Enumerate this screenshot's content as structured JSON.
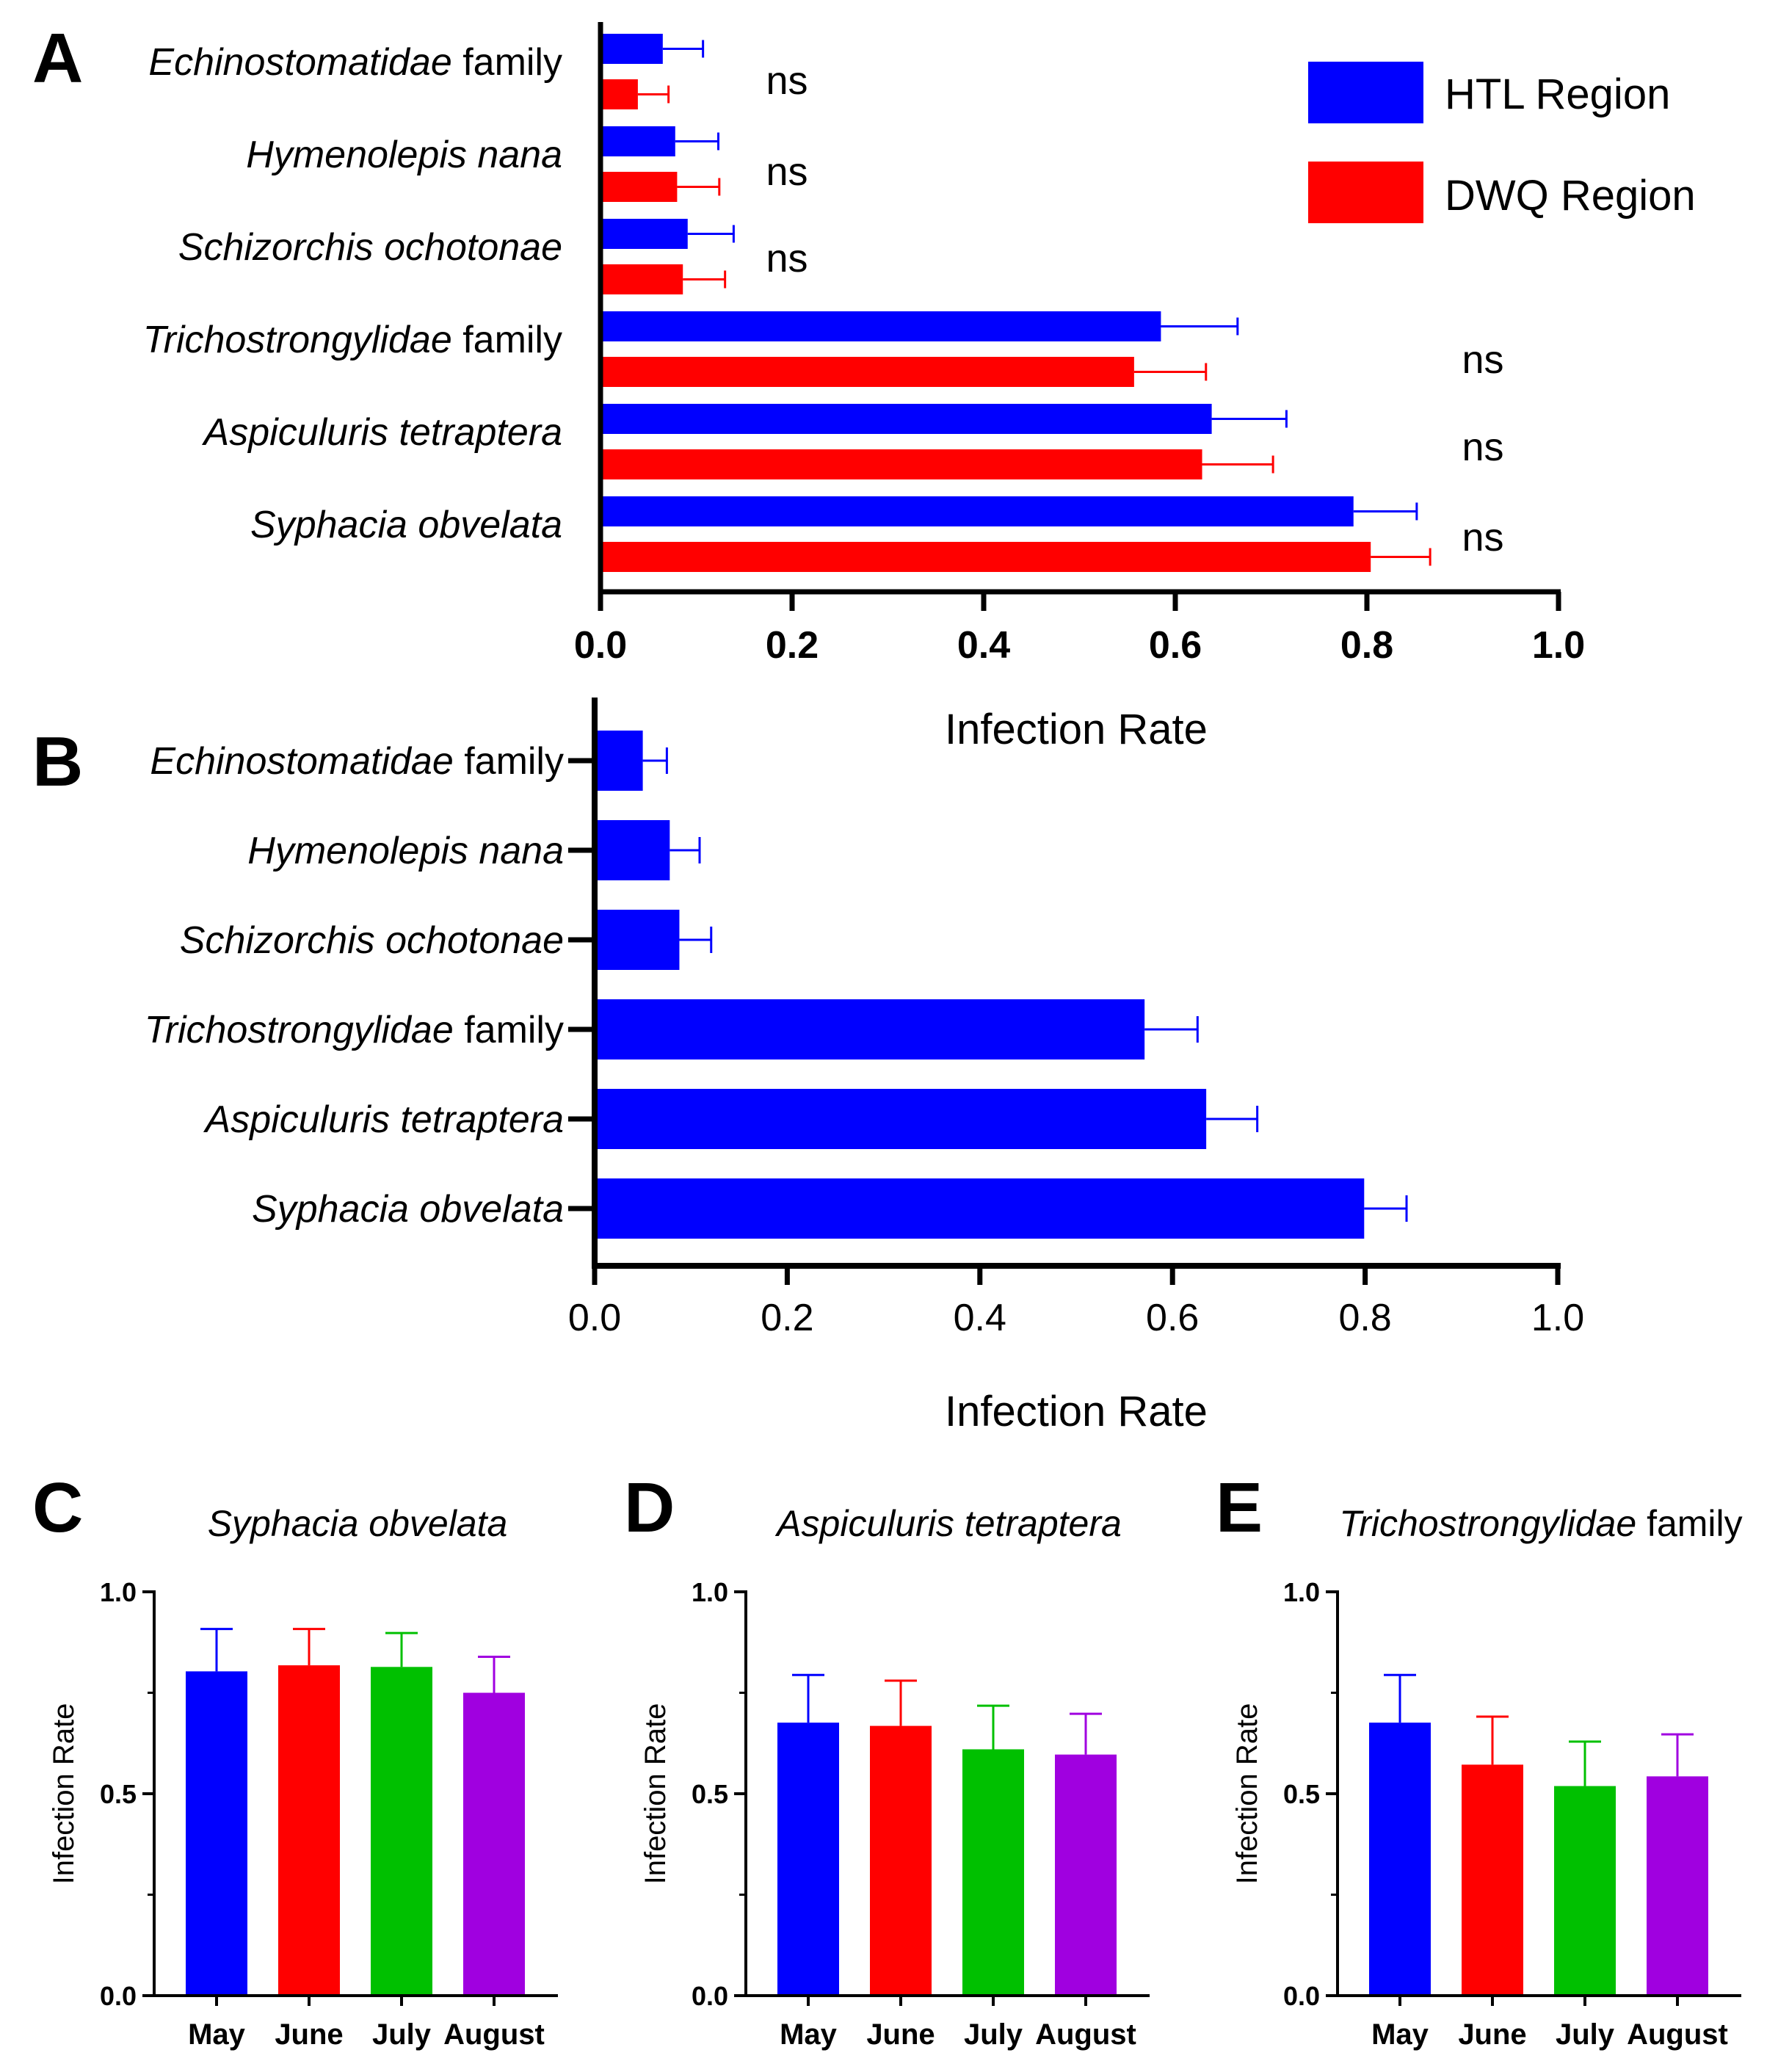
{
  "colors": {
    "htl": "#0000ff",
    "dwq": "#ff0000",
    "may": "#0000ff",
    "june": "#ff0000",
    "july": "#00c000",
    "august": "#a000e0",
    "axis": "#000000"
  },
  "chart_data": [
    {
      "panel": "A",
      "type": "bar",
      "orientation": "horizontal",
      "xlabel": "Infection Rate",
      "xlim": [
        0,
        1.0
      ],
      "ticks": [
        "0.0",
        "0.2",
        "0.4",
        "0.6",
        "0.8",
        "1.0"
      ],
      "legend": "top-right",
      "categories": [
        {
          "italic": "Echinostomatidae",
          "suffix": " family"
        },
        {
          "italic": "Hymenolepis nana",
          "suffix": ""
        },
        {
          "italic": "Schizorchis ochotonae",
          "suffix": ""
        },
        {
          "italic": "Trichostrongylidae",
          "suffix": " family"
        },
        {
          "italic": "Aspiculuris tetraptera",
          "suffix": ""
        },
        {
          "italic": "Syphacia obvelata",
          "suffix": ""
        }
      ],
      "series": [
        {
          "name": "HTL Region",
          "values": [
            0.065,
            0.078,
            0.091,
            0.585,
            0.638,
            0.786
          ],
          "errors": [
            0.042,
            0.045,
            0.048,
            0.08,
            0.078,
            0.066
          ]
        },
        {
          "name": "DWQ Region",
          "values": [
            0.039,
            0.08,
            0.086,
            0.557,
            0.628,
            0.804
          ],
          "errors": [
            0.032,
            0.044,
            0.044,
            0.075,
            0.074,
            0.062
          ]
        }
      ],
      "annotations": [
        "ns",
        "ns",
        "ns",
        "ns",
        "ns",
        "ns"
      ]
    },
    {
      "panel": "B",
      "type": "bar",
      "orientation": "horizontal",
      "xlabel": "Infection Rate",
      "xlim": [
        0,
        1.0
      ],
      "ticks": [
        "0.0",
        "0.2",
        "0.4",
        "0.6",
        "0.8",
        "1.0"
      ],
      "categories": [
        {
          "italic": "Echinostomatidae",
          "suffix": " family"
        },
        {
          "italic": "Hymenolepis nana",
          "suffix": ""
        },
        {
          "italic": "Schizorchis ochotonae",
          "suffix": ""
        },
        {
          "italic": "Trichostrongylidae",
          "suffix": " family"
        },
        {
          "italic": "Aspiculuris tetraptera",
          "suffix": ""
        },
        {
          "italic": "Syphacia obvelata",
          "suffix": ""
        }
      ],
      "values": [
        0.05,
        0.078,
        0.088,
        0.571,
        0.635,
        0.799
      ],
      "errors": [
        0.025,
        0.031,
        0.033,
        0.055,
        0.053,
        0.044
      ]
    },
    {
      "panel": "C",
      "type": "bar",
      "title": "Syphacia obvelata",
      "title_suffix": "",
      "ylabel": "Infection Rate",
      "ylim": [
        0,
        1.0
      ],
      "ticks": [
        "0.0",
        "0.5",
        "1.0"
      ],
      "categories": [
        "May",
        "June",
        "July",
        "August"
      ],
      "values": [
        0.803,
        0.818,
        0.814,
        0.75
      ],
      "errors": [
        0.105,
        0.09,
        0.084,
        0.089
      ]
    },
    {
      "panel": "D",
      "type": "bar",
      "title": "Aspiculuris tetraptera",
      "title_suffix": "",
      "ylabel": "Infection Rate",
      "ylim": [
        0,
        1.0
      ],
      "ticks": [
        "0.0",
        "0.5",
        "1.0"
      ],
      "categories": [
        "May",
        "June",
        "July",
        "August"
      ],
      "values": [
        0.676,
        0.668,
        0.61,
        0.597
      ],
      "errors": [
        0.118,
        0.112,
        0.108,
        0.101
      ]
    },
    {
      "panel": "E",
      "type": "bar",
      "title": "Trichostrongylidae",
      "title_suffix": " family",
      "ylabel": "Infection Rate",
      "ylim": [
        0,
        1.0
      ],
      "ticks": [
        "0.0",
        "0.5",
        "1.0"
      ],
      "categories": [
        "May",
        "June",
        "July",
        "August"
      ],
      "values": [
        0.676,
        0.572,
        0.519,
        0.543
      ],
      "errors": [
        0.118,
        0.119,
        0.11,
        0.104
      ]
    }
  ]
}
